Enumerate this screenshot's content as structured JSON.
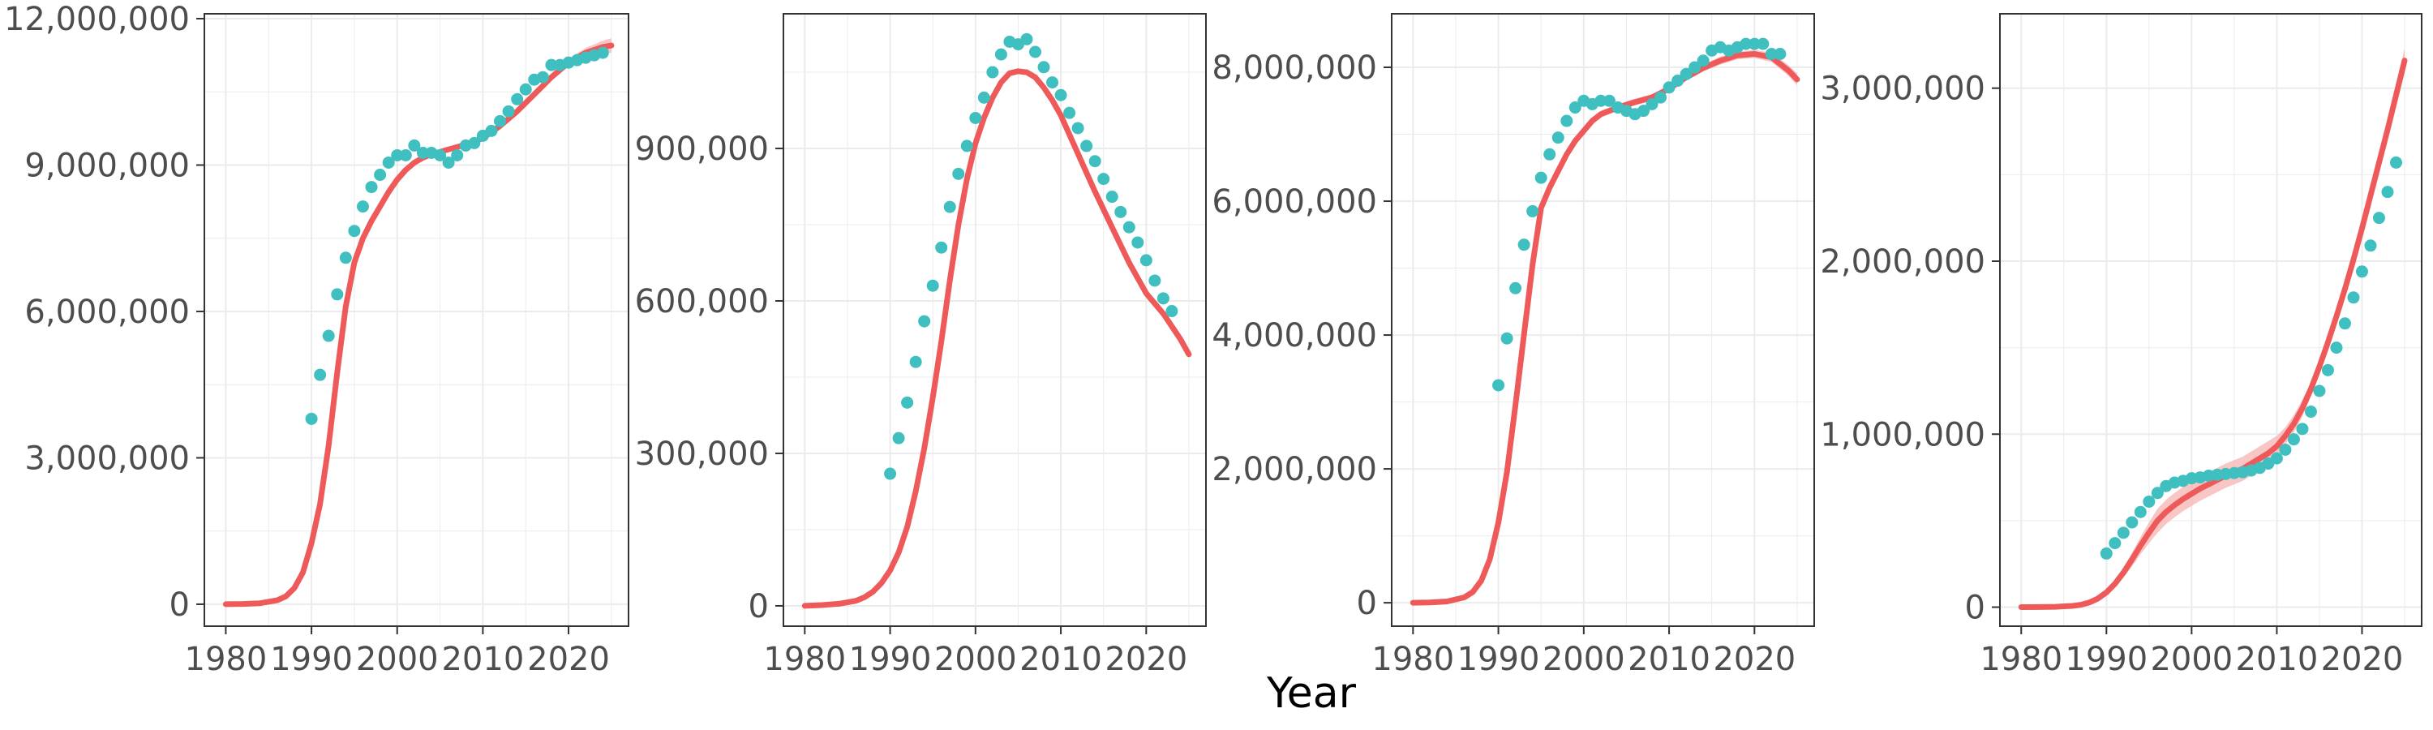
{
  "figure": {
    "xlabel": "Year",
    "colors": {
      "fit_line": "#ee5a5a",
      "fit_band": "#f7b8b8",
      "observed": "#3fbfbf",
      "grid": "#ebebeb",
      "panel_border": "#333333",
      "tick_text": "#4d4d4d"
    }
  },
  "chart_data": [
    {
      "type": "line",
      "xlim": [
        1977.5,
        2027
      ],
      "ylim": [
        -450000,
        12100000
      ],
      "x_ticks": [
        1980,
        1990,
        2000,
        2010,
        2020
      ],
      "x_tick_labels": [
        "1980",
        "1990",
        "2000",
        "2010",
        "2020"
      ],
      "y_ticks": [
        0,
        3000000,
        6000000,
        9000000,
        12000000
      ],
      "y_tick_labels": [
        "0",
        "3,000,000",
        "6,000,000",
        "9,000,000",
        "12,000,000"
      ],
      "fitted": {
        "x": [
          1980,
          1982,
          1984,
          1986,
          1987,
          1988,
          1989,
          1990,
          1991,
          1992,
          1993,
          1994,
          1995,
          1996,
          1997,
          1998,
          1999,
          2000,
          2001,
          2002,
          2003,
          2004,
          2006,
          2008,
          2010,
          2012,
          2014,
          2016,
          2018,
          2020,
          2022,
          2024,
          2025
        ],
        "y": [
          0,
          5000,
          20000,
          80000,
          160000,
          330000,
          650000,
          1250000,
          2050000,
          3250000,
          4750000,
          6100000,
          7000000,
          7500000,
          7850000,
          8150000,
          8450000,
          8700000,
          8900000,
          9050000,
          9150000,
          9220000,
          9320000,
          9420000,
          9550000,
          9800000,
          10100000,
          10450000,
          10800000,
          11100000,
          11300000,
          11420000,
          11450000
        ],
        "band": [
          0,
          2000,
          5000,
          10000,
          15000,
          25000,
          40000,
          60000,
          80000,
          90000,
          100000,
          100000,
          100000,
          90000,
          80000,
          70000,
          60000,
          60000,
          50000,
          50000,
          50000,
          50000,
          50000,
          50000,
          50000,
          50000,
          50000,
          60000,
          70000,
          80000,
          100000,
          130000,
          150000
        ]
      },
      "observed": {
        "x": [
          1990,
          1991,
          1992,
          1993,
          1994,
          1995,
          1996,
          1997,
          1998,
          1999,
          2000,
          2001,
          2002,
          2003,
          2004,
          2005,
          2006,
          2007,
          2008,
          2009,
          2010,
          2011,
          2012,
          2013,
          2014,
          2015,
          2016,
          2017,
          2018,
          2019,
          2020,
          2021,
          2022,
          2023,
          2024
        ],
        "y": [
          3800000,
          4700000,
          5500000,
          6350000,
          7100000,
          7650000,
          8150000,
          8550000,
          8800000,
          9050000,
          9200000,
          9200000,
          9400000,
          9250000,
          9250000,
          9200000,
          9050000,
          9200000,
          9400000,
          9450000,
          9600000,
          9700000,
          9900000,
          10100000,
          10350000,
          10550000,
          10750000,
          10800000,
          11050000,
          11050000,
          11100000,
          11150000,
          11200000,
          11250000,
          11300000
        ]
      }
    },
    {
      "type": "line",
      "xlim": [
        1977.5,
        2027
      ],
      "ylim": [
        -40000,
        1165000
      ],
      "x_ticks": [
        1980,
        1990,
        2000,
        2010,
        2020
      ],
      "x_tick_labels": [
        "1980",
        "1990",
        "2000",
        "2010",
        "2020"
      ],
      "y_ticks": [
        0,
        300000,
        600000,
        900000
      ],
      "y_tick_labels": [
        "0",
        "300,000",
        "600,000",
        "900,000"
      ],
      "fitted": {
        "x": [
          1980,
          1982,
          1984,
          1986,
          1987,
          1988,
          1989,
          1990,
          1991,
          1992,
          1993,
          1994,
          1995,
          1996,
          1997,
          1998,
          1999,
          2000,
          2001,
          2002,
          2003,
          2004,
          2005,
          2006,
          2007,
          2008,
          2009,
          2010,
          2012,
          2014,
          2016,
          2018,
          2020,
          2022,
          2024,
          2025
        ],
        "y": [
          0,
          1500,
          4000,
          10000,
          17000,
          28000,
          45000,
          70000,
          105000,
          155000,
          225000,
          310000,
          410000,
          520000,
          640000,
          750000,
          840000,
          910000,
          960000,
          1000000,
          1030000,
          1048000,
          1052000,
          1050000,
          1040000,
          1020000,
          995000,
          965000,
          890000,
          815000,
          745000,
          675000,
          615000,
          575000,
          525000,
          495000
        ]
      },
      "observed": {
        "x": [
          1990,
          1991,
          1992,
          1993,
          1994,
          1995,
          1996,
          1997,
          1998,
          1999,
          2000,
          2001,
          2002,
          2003,
          2004,
          2005,
          2006,
          2007,
          2008,
          2009,
          2010,
          2011,
          2012,
          2013,
          2014,
          2015,
          2016,
          2017,
          2018,
          2019,
          2020,
          2021,
          2022,
          2023
        ],
        "y": [
          260000,
          330000,
          400000,
          480000,
          560000,
          630000,
          705000,
          785000,
          850000,
          905000,
          960000,
          1000000,
          1050000,
          1085000,
          1110000,
          1105000,
          1115000,
          1090000,
          1060000,
          1030000,
          1005000,
          970000,
          940000,
          905000,
          875000,
          840000,
          805000,
          775000,
          745000,
          715000,
          680000,
          640000,
          605000,
          580000
        ]
      }
    },
    {
      "type": "line",
      "xlim": [
        1977.5,
        2027
      ],
      "ylim": [
        -350000,
        8800000
      ],
      "x_ticks": [
        1980,
        1990,
        2000,
        2010,
        2020
      ],
      "x_tick_labels": [
        "1980",
        "1990",
        "2000",
        "2010",
        "2020"
      ],
      "y_ticks": [
        0,
        2000000,
        4000000,
        6000000,
        8000000
      ],
      "y_tick_labels": [
        "0",
        "2,000,000",
        "4,000,000",
        "6,000,000",
        "8,000,000"
      ],
      "fitted": {
        "x": [
          1980,
          1982,
          1984,
          1986,
          1987,
          1988,
          1989,
          1990,
          1991,
          1992,
          1993,
          1994,
          1995,
          1996,
          1997,
          1998,
          1999,
          2000,
          2001,
          2002,
          2003,
          2004,
          2006,
          2008,
          2010,
          2012,
          2014,
          2016,
          2018,
          2020,
          2022,
          2024,
          2025
        ],
        "y": [
          0,
          5000,
          20000,
          80000,
          160000,
          330000,
          650000,
          1200000,
          1950000,
          2950000,
          4000000,
          5050000,
          5900000,
          6200000,
          6450000,
          6700000,
          6900000,
          7050000,
          7200000,
          7300000,
          7350000,
          7400000,
          7480000,
          7550000,
          7680000,
          7850000,
          7990000,
          8100000,
          8180000,
          8200000,
          8150000,
          7950000,
          7820000
        ],
        "band": [
          0,
          2000,
          5000,
          10000,
          15000,
          25000,
          40000,
          60000,
          80000,
          90000,
          100000,
          100000,
          100000,
          90000,
          80000,
          70000,
          60000,
          60000,
          50000,
          50000,
          50000,
          50000,
          50000,
          50000,
          50000,
          50000,
          50000,
          60000,
          60000,
          60000,
          70000,
          80000,
          90000
        ]
      },
      "observed": {
        "x": [
          1990,
          1991,
          1992,
          1993,
          1994,
          1995,
          1996,
          1997,
          1998,
          1999,
          2000,
          2001,
          2002,
          2003,
          2004,
          2005,
          2006,
          2007,
          2008,
          2009,
          2010,
          2011,
          2012,
          2013,
          2014,
          2015,
          2016,
          2017,
          2018,
          2019,
          2020,
          2021,
          2022,
          2023
        ],
        "y": [
          3250000,
          3950000,
          4700000,
          5350000,
          5850000,
          6350000,
          6700000,
          6950000,
          7200000,
          7400000,
          7500000,
          7450000,
          7500000,
          7500000,
          7400000,
          7350000,
          7300000,
          7350000,
          7450000,
          7550000,
          7700000,
          7800000,
          7900000,
          8000000,
          8100000,
          8250000,
          8300000,
          8250000,
          8300000,
          8350000,
          8350000,
          8350000,
          8200000,
          8200000
        ]
      }
    },
    {
      "type": "line",
      "xlim": [
        1977.5,
        2027
      ],
      "ylim": [
        -110000,
        3430000
      ],
      "x_ticks": [
        1980,
        1990,
        2000,
        2010,
        2020
      ],
      "x_tick_labels": [
        "1980",
        "1990",
        "2000",
        "2010",
        "2020"
      ],
      "y_ticks": [
        0,
        1000000,
        2000000,
        3000000
      ],
      "y_tick_labels": [
        "0",
        "1,000,000",
        "2,000,000",
        "3,000,000"
      ],
      "fitted": {
        "x": [
          1980,
          1982,
          1984,
          1986,
          1987,
          1988,
          1989,
          1990,
          1991,
          1992,
          1993,
          1994,
          1995,
          1996,
          1997,
          1998,
          1999,
          2000,
          2001,
          2002,
          2003,
          2004,
          2005,
          2006,
          2007,
          2008,
          2009,
          2010,
          2011,
          2012,
          2013,
          2014,
          2015,
          2016,
          2017,
          2018,
          2019,
          2020,
          2021,
          2022,
          2023,
          2024,
          2025
        ],
        "y": [
          0,
          500,
          2000,
          7000,
          14000,
          27000,
          50000,
          85000,
          135000,
          200000,
          275000,
          355000,
          430000,
          500000,
          550000,
          590000,
          625000,
          655000,
          685000,
          710000,
          735000,
          760000,
          780000,
          800000,
          830000,
          860000,
          890000,
          930000,
          990000,
          1060000,
          1150000,
          1260000,
          1390000,
          1530000,
          1680000,
          1840000,
          2010000,
          2190000,
          2380000,
          2570000,
          2760000,
          2960000,
          3160000
        ],
        "band": [
          0,
          1000,
          2000,
          4000,
          6000,
          8000,
          10000,
          15000,
          20000,
          30000,
          40000,
          50000,
          60000,
          70000,
          70000,
          70000,
          70000,
          70000,
          70000,
          70000,
          70000,
          70000,
          70000,
          70000,
          70000,
          70000,
          70000,
          60000,
          50000,
          50000,
          50000,
          40000,
          40000,
          40000,
          40000,
          40000,
          40000,
          40000,
          40000,
          40000,
          50000,
          60000,
          70000
        ]
      },
      "observed": {
        "x": [
          1990,
          1991,
          1992,
          1993,
          1994,
          1995,
          1996,
          1997,
          1998,
          1999,
          2000,
          2001,
          2002,
          2003,
          2004,
          2005,
          2006,
          2007,
          2008,
          2009,
          2010,
          2011,
          2012,
          2013,
          2014,
          2015,
          2016,
          2017,
          2018,
          2019,
          2020,
          2021,
          2022,
          2023,
          2024
        ],
        "y": [
          310000,
          370000,
          430000,
          490000,
          550000,
          610000,
          660000,
          700000,
          720000,
          730000,
          745000,
          750000,
          760000,
          765000,
          770000,
          775000,
          780000,
          790000,
          805000,
          830000,
          860000,
          910000,
          970000,
          1030000,
          1130000,
          1250000,
          1370000,
          1500000,
          1640000,
          1790000,
          1940000,
          2090000,
          2250000,
          2400000,
          2570000
        ]
      }
    }
  ]
}
